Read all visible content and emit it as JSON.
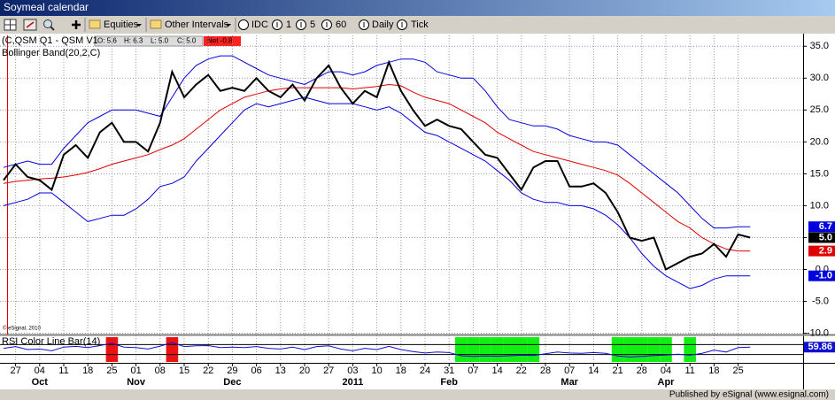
{
  "window": {
    "title": "Soymeal calendar"
  },
  "toolbar": {
    "items": [
      "Equities",
      "Other Intervals",
      "IDC",
      "1",
      "5",
      "60",
      "Daily",
      "Tick"
    ]
  },
  "chart_data": [
    {
      "type": "line",
      "symbol": "(C,QSM Q1 - QSM V1",
      "quote": [
        "O: 5.6",
        "H: 6.3",
        "L: 5.0",
        "C: 5.0"
      ],
      "net": "Net -0.8",
      "title": "Bollinger Band(20,2,C)",
      "copyright": "© eSignal, 2010",
      "categories": [
        null,
        "27",
        null,
        "04",
        null,
        "11",
        null,
        "18",
        null,
        "25",
        null,
        "01",
        null,
        "08",
        null,
        "15",
        null,
        "22",
        null,
        "29",
        null,
        "06",
        null,
        "13",
        null,
        "20",
        null,
        "27",
        null,
        "03",
        null,
        "10",
        null,
        "18",
        null,
        "24",
        null,
        "31",
        null,
        "07",
        null,
        "14",
        null,
        "22",
        null,
        "28",
        null,
        "07",
        null,
        "14",
        null,
        "21",
        null,
        "28",
        null,
        "04",
        null,
        "11",
        null,
        "18",
        null,
        "25",
        null
      ],
      "x_groups": [
        null,
        null,
        null,
        "Oct",
        null,
        null,
        null,
        null,
        null,
        null,
        null,
        "Nov",
        null,
        null,
        null,
        null,
        null,
        null,
        null,
        "Dec",
        null,
        null,
        null,
        null,
        null,
        null,
        null,
        null,
        null,
        "2011",
        null,
        null,
        null,
        null,
        null,
        null,
        null,
        "Feb",
        null,
        null,
        null,
        null,
        null,
        null,
        null,
        null,
        null,
        "Mar",
        null,
        null,
        null,
        null,
        null,
        null,
        null,
        "Apr",
        null,
        null,
        null,
        null,
        null,
        null,
        null
      ],
      "ylim": [
        -10.2,
        36.7
      ],
      "yticks": [
        {
          "value": 35,
          "label": "35.0"
        },
        {
          "value": 30,
          "label": "30.0"
        },
        {
          "value": 25,
          "label": "25.0"
        },
        {
          "value": 20,
          "label": "20.0"
        },
        {
          "value": 15,
          "label": "15.0"
        },
        {
          "value": 10,
          "label": "10.0"
        },
        {
          "value": 5,
          "label": "5.0"
        },
        {
          "value": 0,
          "label": "0.0"
        },
        {
          "value": -5,
          "label": "-5.0"
        },
        {
          "value": -10,
          "label": "-10.0"
        }
      ],
      "grid": true,
      "series": [
        {
          "color": "#000000",
          "values": [
            14,
            16.5,
            14.5,
            14,
            12.5,
            18,
            19.5,
            17.5,
            21.5,
            23,
            20,
            20,
            18.5,
            23,
            31,
            27,
            29,
            30.5,
            28,
            28.5,
            28,
            30,
            28,
            27,
            29,
            26.5,
            30,
            32,
            28.5,
            26,
            28,
            27,
            32.5,
            28,
            25,
            22.5,
            23.5,
            22.5,
            22,
            20,
            18,
            17.5,
            15,
            12.5,
            16,
            17,
            17,
            13,
            13,
            13.5,
            12,
            9,
            5,
            4.5,
            5,
            0,
            1,
            2,
            2.5,
            4,
            2,
            5.5,
            5
          ],
          "value_labels": [
            null,
            null,
            null,
            null,
            null,
            null,
            null,
            null,
            null,
            null,
            null,
            null,
            null,
            null,
            null,
            null,
            null,
            null,
            null,
            null,
            null,
            null,
            null,
            null,
            null,
            null,
            null,
            null,
            null,
            null,
            null,
            null,
            null,
            null,
            null,
            null,
            null,
            null,
            null,
            null,
            null,
            null,
            null,
            null,
            null,
            null,
            null,
            null,
            null,
            null,
            null,
            null,
            null,
            null,
            null,
            null,
            null,
            null,
            null,
            null,
            null,
            null,
            "5.0"
          ]
        },
        {
          "color": "#e00000",
          "values": [
            13.5,
            13.8,
            14,
            14.2,
            14.3,
            14.5,
            14.8,
            15.2,
            15.8,
            16.5,
            17,
            17.5,
            18,
            18.8,
            19.5,
            20.5,
            22,
            23.5,
            25,
            26,
            27,
            27.5,
            28,
            28.3,
            28.5,
            28.5,
            28.5,
            28.5,
            28.5,
            28.3,
            28.5,
            28.7,
            29,
            28.8,
            27.8,
            27,
            26.5,
            26,
            25,
            24,
            23,
            21.5,
            20.5,
            19.5,
            18.5,
            18,
            17.5,
            17,
            16.5,
            16,
            15.5,
            14.8,
            13.5,
            12,
            10.5,
            9,
            7.5,
            6.5,
            5,
            4,
            3.2,
            2.9,
            2.9
          ]
        },
        {
          "color": "#0000e0",
          "values": [
            16,
            16.5,
            17,
            16.5,
            16.5,
            19,
            21,
            23,
            24,
            25,
            25,
            25,
            24.5,
            24,
            27,
            30,
            32,
            33,
            33.5,
            33.5,
            32.5,
            31.5,
            30.5,
            30,
            29.5,
            29,
            30,
            31,
            31,
            30.5,
            31,
            32,
            32.5,
            33,
            33,
            32.5,
            31,
            30.5,
            30,
            30,
            28,
            25.5,
            23.5,
            23,
            22.5,
            22.5,
            22,
            21,
            20.5,
            20,
            20,
            19.5,
            18,
            16.5,
            15,
            13.5,
            12,
            10,
            8,
            6.5,
            6.5,
            6.7,
            6.7
          ]
        },
        {
          "color": "#0000e0",
          "values": [
            10,
            10.5,
            11,
            12,
            12,
            10.5,
            9,
            7.5,
            8,
            8.5,
            8.5,
            9.5,
            11,
            13,
            13.5,
            14.5,
            17,
            19,
            21,
            23,
            25,
            26,
            25.5,
            26,
            26.5,
            27,
            26.5,
            26,
            26,
            26,
            25.5,
            25,
            25.5,
            24.5,
            23,
            21.5,
            21,
            20,
            19,
            18,
            17,
            15.5,
            14,
            12,
            11,
            10.5,
            10.5,
            10,
            10,
            9.5,
            8.5,
            7,
            5,
            2.5,
            0.5,
            -1,
            -2,
            -3,
            -2.5,
            -1.5,
            -1,
            -1,
            -1
          ],
          "value_labels": [
            null,
            null,
            null,
            null,
            null,
            null,
            null,
            null,
            null,
            null,
            null,
            null,
            null,
            null,
            null,
            null,
            null,
            null,
            null,
            null,
            null,
            null,
            null,
            null,
            null,
            null,
            null,
            null,
            null,
            null,
            null,
            null,
            null,
            null,
            null,
            null,
            null,
            null,
            null,
            null,
            null,
            null,
            null,
            null,
            null,
            null,
            null,
            null,
            null,
            null,
            null,
            null,
            null,
            null,
            null,
            null,
            null,
            null,
            null,
            null,
            null,
            null,
            "-1.0"
          ]
        }
      ]
    },
    {
      "type": "line",
      "title": "RSI Color Line Bar(14)",
      "ylim": [
        0,
        100
      ],
      "levels": [
        30,
        70
      ],
      "high_color": "#ee1111",
      "low_color": "#11ee11",
      "series": [
        {
          "color": "#1010d0",
          "values": [
            55,
            62,
            50,
            52,
            45,
            60,
            63,
            58,
            66,
            75,
            60,
            58,
            52,
            64,
            78,
            62,
            65,
            66,
            58,
            60,
            58,
            62,
            55,
            52,
            60,
            50,
            62,
            65,
            52,
            45,
            55,
            50,
            63,
            50,
            42,
            36,
            40,
            38,
            25,
            22,
            24,
            23,
            25,
            27,
            26,
            33,
            40,
            36,
            35,
            38,
            35,
            24,
            20,
            22,
            26,
            28,
            31,
            27,
            35,
            48,
            40,
            58,
            59.86
          ]
        }
      ]
    }
  ],
  "footer": "Published by eSignal (www.esignal.com)"
}
